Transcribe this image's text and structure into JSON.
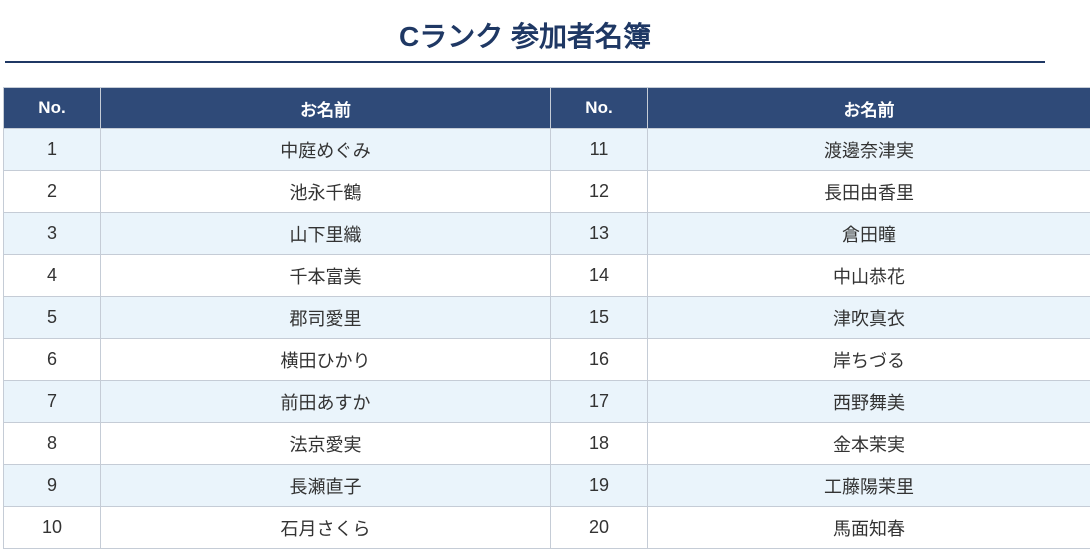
{
  "header": {
    "title": "Cランク 参加者名簿"
  },
  "table": {
    "columns": [
      "No.",
      "お名前",
      "No.",
      "お名前"
    ],
    "rows": [
      [
        "1",
        "中庭めぐみ",
        "11",
        "渡邊奈津実"
      ],
      [
        "2",
        "池永千鶴",
        "12",
        "長田由香里"
      ],
      [
        "3",
        "山下里織",
        "13",
        "倉田瞳"
      ],
      [
        "4",
        "千本富美",
        "14",
        "中山恭花"
      ],
      [
        "5",
        "郡司愛里",
        "15",
        "津吹真衣"
      ],
      [
        "6",
        "横田ひかり",
        "16",
        "岸ちづる"
      ],
      [
        "7",
        "前田あすか",
        "17",
        "西野舞美"
      ],
      [
        "8",
        "法京愛実",
        "18",
        "金本茉実"
      ],
      [
        "9",
        "長瀬直子",
        "19",
        "工藤陽茉里"
      ],
      [
        "10",
        "石月さくら",
        "20",
        "馬面知春"
      ]
    ]
  }
}
